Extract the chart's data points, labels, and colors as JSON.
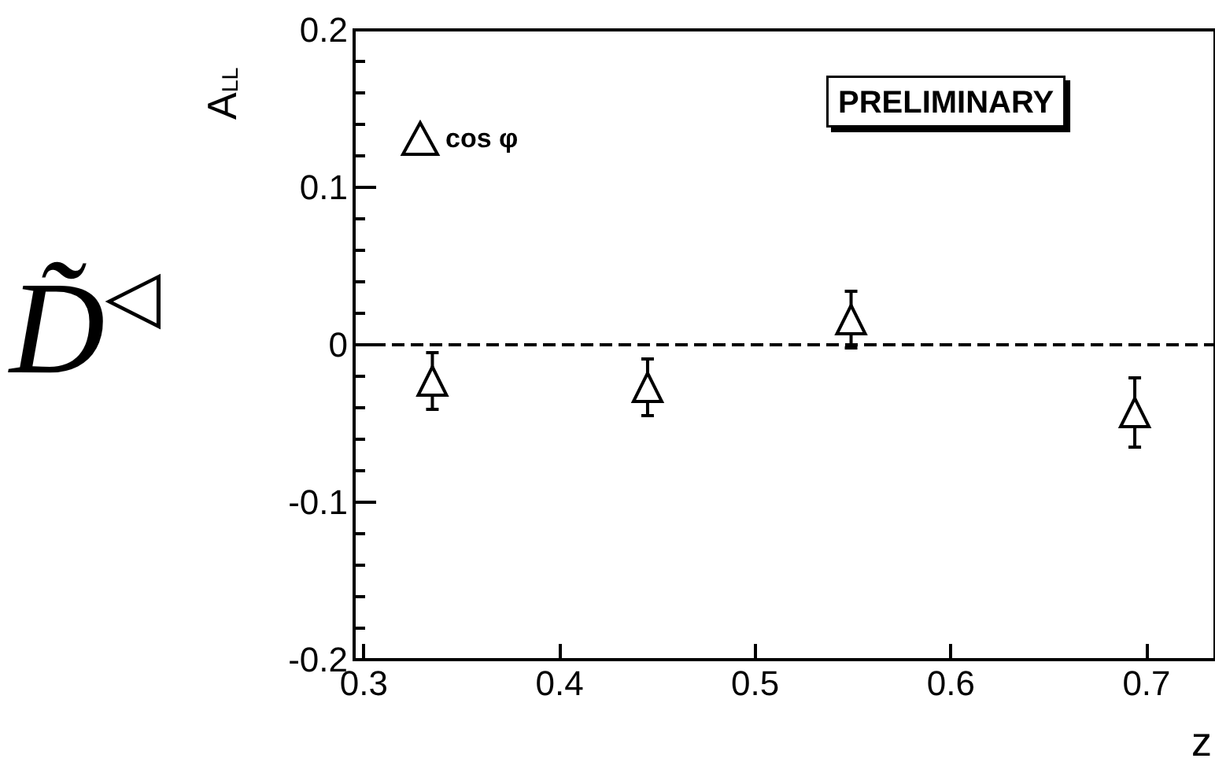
{
  "chart_data": {
    "type": "scatter",
    "xlabel": "z",
    "ylabel": "A$_{LL}$",
    "x": [
      0.335,
      0.445,
      0.549,
      0.694
    ],
    "series": [
      {
        "name": "cos φ",
        "color": "#000000",
        "values": [
          -0.023,
          -0.027,
          0.016,
          -0.043
        ],
        "errors": [
          0.018,
          0.018,
          0.018,
          0.022
        ]
      }
    ],
    "xlim": [
      0.295,
      0.735
    ],
    "xticks": [
      0.3,
      0.4,
      0.5,
      0.6,
      0.7
    ],
    "ylim": [
      -0.2,
      0.2
    ],
    "yticks": [
      -0.2,
      -0.1,
      0,
      0.1,
      0.2
    ],
    "ref_lines": [
      {
        "axis": "y",
        "value": 0,
        "line_style": "dashed",
        "color": "#000000"
      }
    ],
    "annotations": [
      "PRELIMINARY",
      "D̃$^{◁}$"
    ],
    "marker": "triangle",
    "legend": "top left",
    "grid": false
  }
}
